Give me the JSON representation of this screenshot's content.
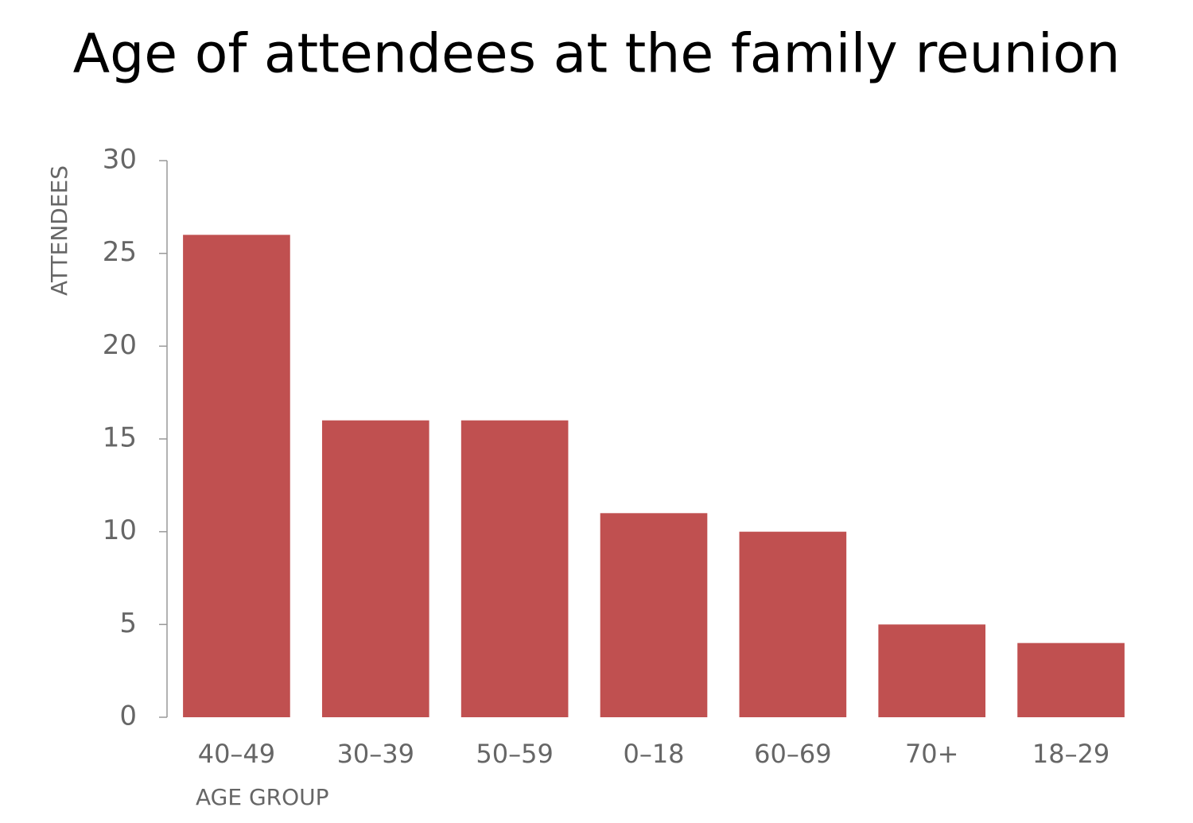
{
  "chart_data": {
    "type": "bar",
    "title": "Age of attendees at the family reunion",
    "x_label": "AGE GROUP",
    "y_label": "ATTENDEES",
    "categories": [
      "40–49",
      "30–39",
      "50–59",
      "0–18",
      "60–69",
      "70+",
      "18–29"
    ],
    "values": [
      26,
      16,
      16,
      11,
      10,
      5,
      4
    ],
    "color": "#c05050",
    "ylim": [
      0,
      30
    ],
    "yticks": [
      0,
      5,
      10,
      15,
      20,
      25,
      30
    ]
  }
}
